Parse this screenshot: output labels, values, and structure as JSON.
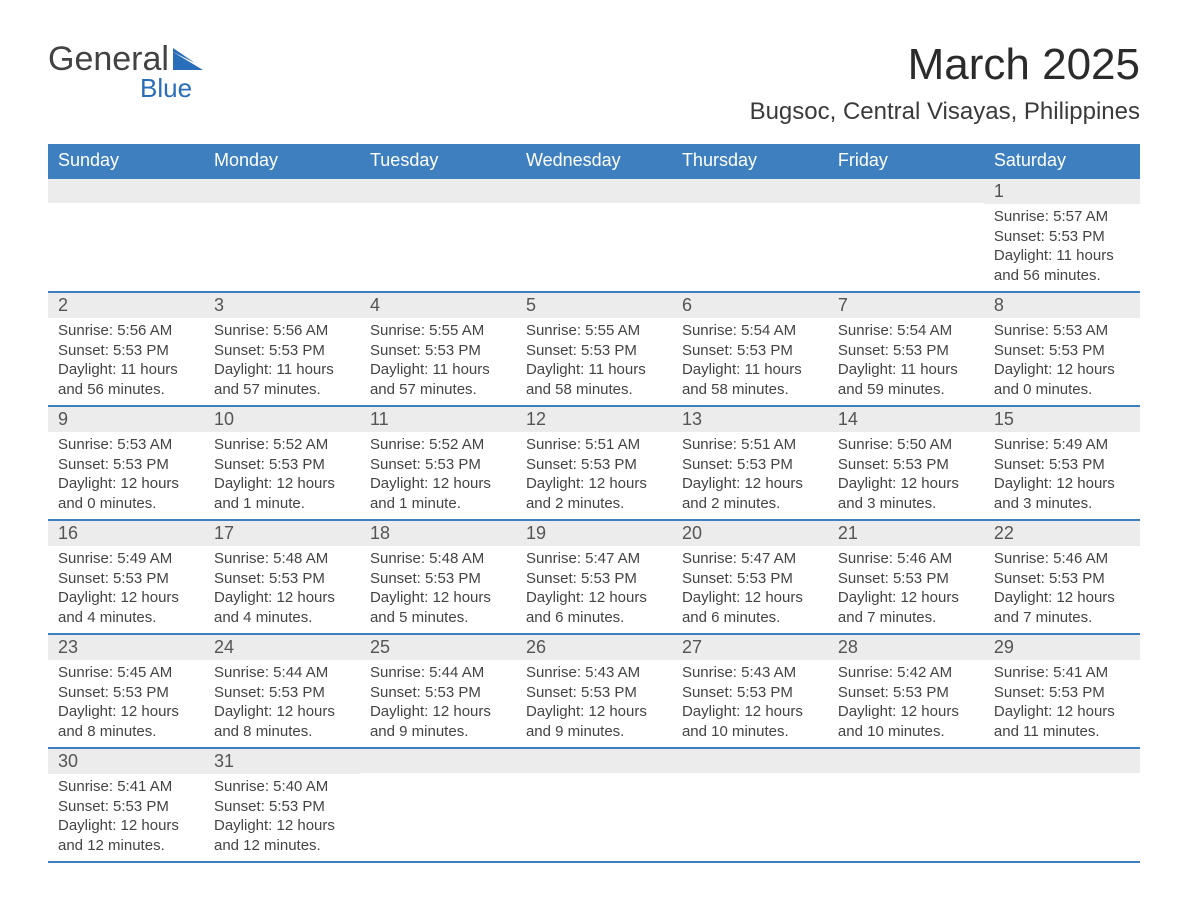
{
  "brand": {
    "word1": "General",
    "word2": "Blue",
    "flag_color": "#2a6db8"
  },
  "title": "March 2025",
  "location": "Bugsoc, Central Visayas, Philippines",
  "colors": {
    "header_bg": "#3d7fbf",
    "header_text": "#ffffff",
    "daynum_bg": "#ececec",
    "body_text": "#444444",
    "row_border": "#3d7fbf"
  },
  "font": {
    "title_size": 44,
    "subtitle_size": 24,
    "header_size": 18,
    "body_size": 15
  },
  "day_headers": [
    "Sunday",
    "Monday",
    "Tuesday",
    "Wednesday",
    "Thursday",
    "Friday",
    "Saturday"
  ],
  "weeks": [
    [
      null,
      null,
      null,
      null,
      null,
      null,
      {
        "n": "1",
        "sr": "5:57 AM",
        "ss": "5:53 PM",
        "dl": "11 hours and 56 minutes."
      }
    ],
    [
      {
        "n": "2",
        "sr": "5:56 AM",
        "ss": "5:53 PM",
        "dl": "11 hours and 56 minutes."
      },
      {
        "n": "3",
        "sr": "5:56 AM",
        "ss": "5:53 PM",
        "dl": "11 hours and 57 minutes."
      },
      {
        "n": "4",
        "sr": "5:55 AM",
        "ss": "5:53 PM",
        "dl": "11 hours and 57 minutes."
      },
      {
        "n": "5",
        "sr": "5:55 AM",
        "ss": "5:53 PM",
        "dl": "11 hours and 58 minutes."
      },
      {
        "n": "6",
        "sr": "5:54 AM",
        "ss": "5:53 PM",
        "dl": "11 hours and 58 minutes."
      },
      {
        "n": "7",
        "sr": "5:54 AM",
        "ss": "5:53 PM",
        "dl": "11 hours and 59 minutes."
      },
      {
        "n": "8",
        "sr": "5:53 AM",
        "ss": "5:53 PM",
        "dl": "12 hours and 0 minutes."
      }
    ],
    [
      {
        "n": "9",
        "sr": "5:53 AM",
        "ss": "5:53 PM",
        "dl": "12 hours and 0 minutes."
      },
      {
        "n": "10",
        "sr": "5:52 AM",
        "ss": "5:53 PM",
        "dl": "12 hours and 1 minute."
      },
      {
        "n": "11",
        "sr": "5:52 AM",
        "ss": "5:53 PM",
        "dl": "12 hours and 1 minute."
      },
      {
        "n": "12",
        "sr": "5:51 AM",
        "ss": "5:53 PM",
        "dl": "12 hours and 2 minutes."
      },
      {
        "n": "13",
        "sr": "5:51 AM",
        "ss": "5:53 PM",
        "dl": "12 hours and 2 minutes."
      },
      {
        "n": "14",
        "sr": "5:50 AM",
        "ss": "5:53 PM",
        "dl": "12 hours and 3 minutes."
      },
      {
        "n": "15",
        "sr": "5:49 AM",
        "ss": "5:53 PM",
        "dl": "12 hours and 3 minutes."
      }
    ],
    [
      {
        "n": "16",
        "sr": "5:49 AM",
        "ss": "5:53 PM",
        "dl": "12 hours and 4 minutes."
      },
      {
        "n": "17",
        "sr": "5:48 AM",
        "ss": "5:53 PM",
        "dl": "12 hours and 4 minutes."
      },
      {
        "n": "18",
        "sr": "5:48 AM",
        "ss": "5:53 PM",
        "dl": "12 hours and 5 minutes."
      },
      {
        "n": "19",
        "sr": "5:47 AM",
        "ss": "5:53 PM",
        "dl": "12 hours and 6 minutes."
      },
      {
        "n": "20",
        "sr": "5:47 AM",
        "ss": "5:53 PM",
        "dl": "12 hours and 6 minutes."
      },
      {
        "n": "21",
        "sr": "5:46 AM",
        "ss": "5:53 PM",
        "dl": "12 hours and 7 minutes."
      },
      {
        "n": "22",
        "sr": "5:46 AM",
        "ss": "5:53 PM",
        "dl": "12 hours and 7 minutes."
      }
    ],
    [
      {
        "n": "23",
        "sr": "5:45 AM",
        "ss": "5:53 PM",
        "dl": "12 hours and 8 minutes."
      },
      {
        "n": "24",
        "sr": "5:44 AM",
        "ss": "5:53 PM",
        "dl": "12 hours and 8 minutes."
      },
      {
        "n": "25",
        "sr": "5:44 AM",
        "ss": "5:53 PM",
        "dl": "12 hours and 9 minutes."
      },
      {
        "n": "26",
        "sr": "5:43 AM",
        "ss": "5:53 PM",
        "dl": "12 hours and 9 minutes."
      },
      {
        "n": "27",
        "sr": "5:43 AM",
        "ss": "5:53 PM",
        "dl": "12 hours and 10 minutes."
      },
      {
        "n": "28",
        "sr": "5:42 AM",
        "ss": "5:53 PM",
        "dl": "12 hours and 10 minutes."
      },
      {
        "n": "29",
        "sr": "5:41 AM",
        "ss": "5:53 PM",
        "dl": "12 hours and 11 minutes."
      }
    ],
    [
      {
        "n": "30",
        "sr": "5:41 AM",
        "ss": "5:53 PM",
        "dl": "12 hours and 12 minutes."
      },
      {
        "n": "31",
        "sr": "5:40 AM",
        "ss": "5:53 PM",
        "dl": "12 hours and 12 minutes."
      },
      null,
      null,
      null,
      null,
      null
    ]
  ],
  "labels": {
    "sunrise": "Sunrise: ",
    "sunset": "Sunset: ",
    "daylight": "Daylight: "
  }
}
